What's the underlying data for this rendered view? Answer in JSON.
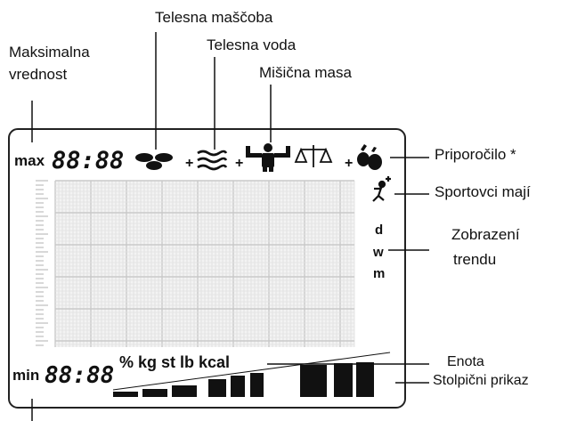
{
  "labels": {
    "telesna_mascoba": "Telesna maščoba",
    "telesna_voda": "Telesna voda",
    "misicna_masa": "Mišična masa",
    "maksimalna_line1": "Maksimalna",
    "maksimalna_line2": "vrednost",
    "priporocilo": "Priporočilo *",
    "sportovci": "Sportovci mají",
    "zobrazeni_line1": "Zobrazení",
    "zobrazeni_line2": "trendu",
    "enota": "Enota",
    "stolpicni": "Stolpični prikaz"
  },
  "display": {
    "max_label": "max",
    "min_label": "min",
    "max_digits": "88:88",
    "min_digits": "88:88",
    "plus": "+",
    "trend_d": "d",
    "trend_w": "w",
    "trend_m": "m",
    "units": "% kg st lb kcal"
  }
}
